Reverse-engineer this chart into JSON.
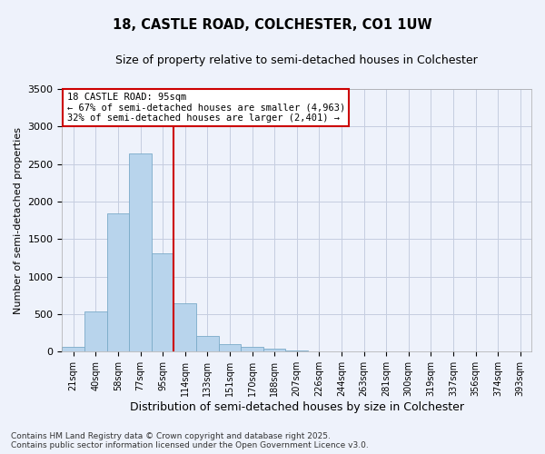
{
  "title_line1": "18, CASTLE ROAD, COLCHESTER, CO1 1UW",
  "title_line2": "Size of property relative to semi-detached houses in Colchester",
  "xlabel": "Distribution of semi-detached houses by size in Colchester",
  "ylabel": "Number of semi-detached properties",
  "categories": [
    "21sqm",
    "40sqm",
    "58sqm",
    "77sqm",
    "95sqm",
    "114sqm",
    "133sqm",
    "151sqm",
    "170sqm",
    "188sqm",
    "207sqm",
    "226sqm",
    "244sqm",
    "263sqm",
    "281sqm",
    "300sqm",
    "319sqm",
    "337sqm",
    "356sqm",
    "374sqm",
    "393sqm"
  ],
  "values": [
    65,
    530,
    1840,
    2640,
    1310,
    640,
    210,
    100,
    65,
    40,
    20,
    10,
    5,
    0,
    0,
    0,
    0,
    0,
    0,
    0,
    0
  ],
  "bar_color": "#b8d4ec",
  "bar_edge_color": "#7aaac8",
  "property_index": 4,
  "vline_color": "#cc0000",
  "annotation_text": "18 CASTLE ROAD: 95sqm\n← 67% of semi-detached houses are smaller (4,963)\n32% of semi-detached houses are larger (2,401) →",
  "annotation_box_color": "#cc0000",
  "ylim": [
    0,
    3500
  ],
  "yticks": [
    0,
    500,
    1000,
    1500,
    2000,
    2500,
    3000,
    3500
  ],
  "footnote": "Contains HM Land Registry data © Crown copyright and database right 2025.\nContains public sector information licensed under the Open Government Licence v3.0.",
  "bg_color": "#eef2fb",
  "plot_bg_color": "#eef2fb",
  "grid_color": "#c5cde0"
}
